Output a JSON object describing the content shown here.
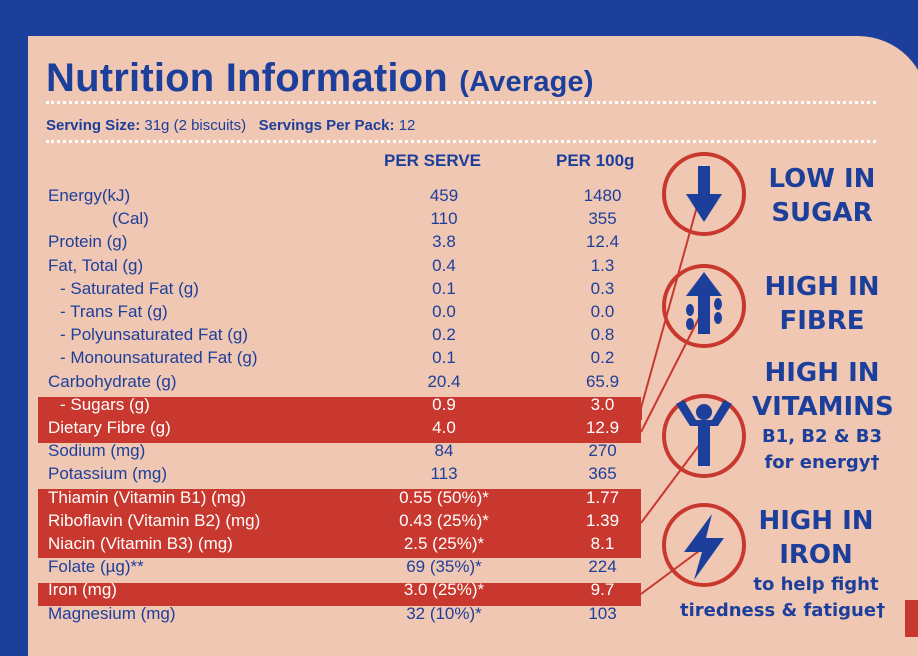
{
  "title": {
    "main": "Nutrition Information",
    "sub": "(Average)"
  },
  "serving": {
    "size_label": "Serving Size:",
    "size_value": "31g (2 biscuits)",
    "per_pack_label": "Servings Per Pack:",
    "per_pack_value": "12"
  },
  "headers": {
    "per_serve": "PER SERVE",
    "per_100g": "PER 100g"
  },
  "rows": [
    {
      "label": "Energy(kJ)",
      "per_serve": "459",
      "per_100g": "1480",
      "highlight": false
    },
    {
      "label": "(Cal)",
      "per_serve": "110",
      "per_100g": "355",
      "highlight": false
    },
    {
      "label": "Protein (g)",
      "per_serve": "3.8",
      "per_100g": "12.4",
      "highlight": false
    },
    {
      "label": "Fat, Total (g)",
      "per_serve": "0.4",
      "per_100g": "1.3",
      "highlight": false
    },
    {
      "label": "- Saturated Fat (g)",
      "per_serve": "0.1",
      "per_100g": "0.3",
      "highlight": false
    },
    {
      "label": "- Trans Fat (g)",
      "per_serve": "0.0",
      "per_100g": "0.0",
      "highlight": false
    },
    {
      "label": "- Polyunsaturated Fat (g)",
      "per_serve": "0.2",
      "per_100g": "0.8",
      "highlight": false
    },
    {
      "label": "- Monounsaturated Fat (g)",
      "per_serve": "0.1",
      "per_100g": "0.2",
      "highlight": false
    },
    {
      "label": "Carbohydrate (g)",
      "per_serve": "20.4",
      "per_100g": "65.9",
      "highlight": false
    },
    {
      "label": "- Sugars (g)",
      "per_serve": "0.9",
      "per_100g": "3.0",
      "highlight": true
    },
    {
      "label": "Dietary Fibre (g)",
      "per_serve": "4.0",
      "per_100g": "12.9",
      "highlight": true
    },
    {
      "label": "Sodium (mg)",
      "per_serve": "84",
      "per_100g": "270",
      "highlight": false
    },
    {
      "label": "Potassium (mg)",
      "per_serve": "113",
      "per_100g": "365",
      "highlight": false
    },
    {
      "label": "Thiamin (Vitamin B1) (mg)",
      "per_serve": "0.55 (50%)*",
      "per_100g": "1.77",
      "highlight": true
    },
    {
      "label": "Riboflavin (Vitamin B2) (mg)",
      "per_serve": "0.43 (25%)*",
      "per_100g": "1.39",
      "highlight": true
    },
    {
      "label": "Niacin (Vitamin B3) (mg)",
      "per_serve": "2.5 (25%)*",
      "per_100g": "8.1",
      "highlight": true
    },
    {
      "label": "Folate (µg)**",
      "per_serve": "69 (35%)*",
      "per_100g": "224",
      "highlight": false
    },
    {
      "label": "Iron (mg)",
      "per_serve": "3.0 (25%)*",
      "per_100g": "9.7",
      "highlight": true
    },
    {
      "label": "Magnesium (mg)",
      "per_serve": "32 (10%)*",
      "per_100g": "103",
      "highlight": false
    }
  ],
  "claims": {
    "sugar": {
      "line1": "LOW IN",
      "line2": "SUGAR",
      "icon": "down-arrow-icon"
    },
    "fibre": {
      "line1": "HIGH IN",
      "line2": "FIBRE",
      "icon": "wheat-arrow-icon"
    },
    "vitamins": {
      "line1": "HIGH IN",
      "line2": "VITAMINS",
      "line3": "B1, B2 & B3",
      "line4": "for energy†",
      "icon": "person-cheering-icon"
    },
    "iron": {
      "line1": "HIGH IN",
      "line2": "IRON",
      "line3": "to help fight",
      "line4": "tiredness & fatigue†",
      "icon": "lightning-bolt-icon"
    }
  },
  "colors": {
    "navy": "#1d3f9c",
    "peach": "#f0c7b2",
    "red": "#c8382e"
  }
}
